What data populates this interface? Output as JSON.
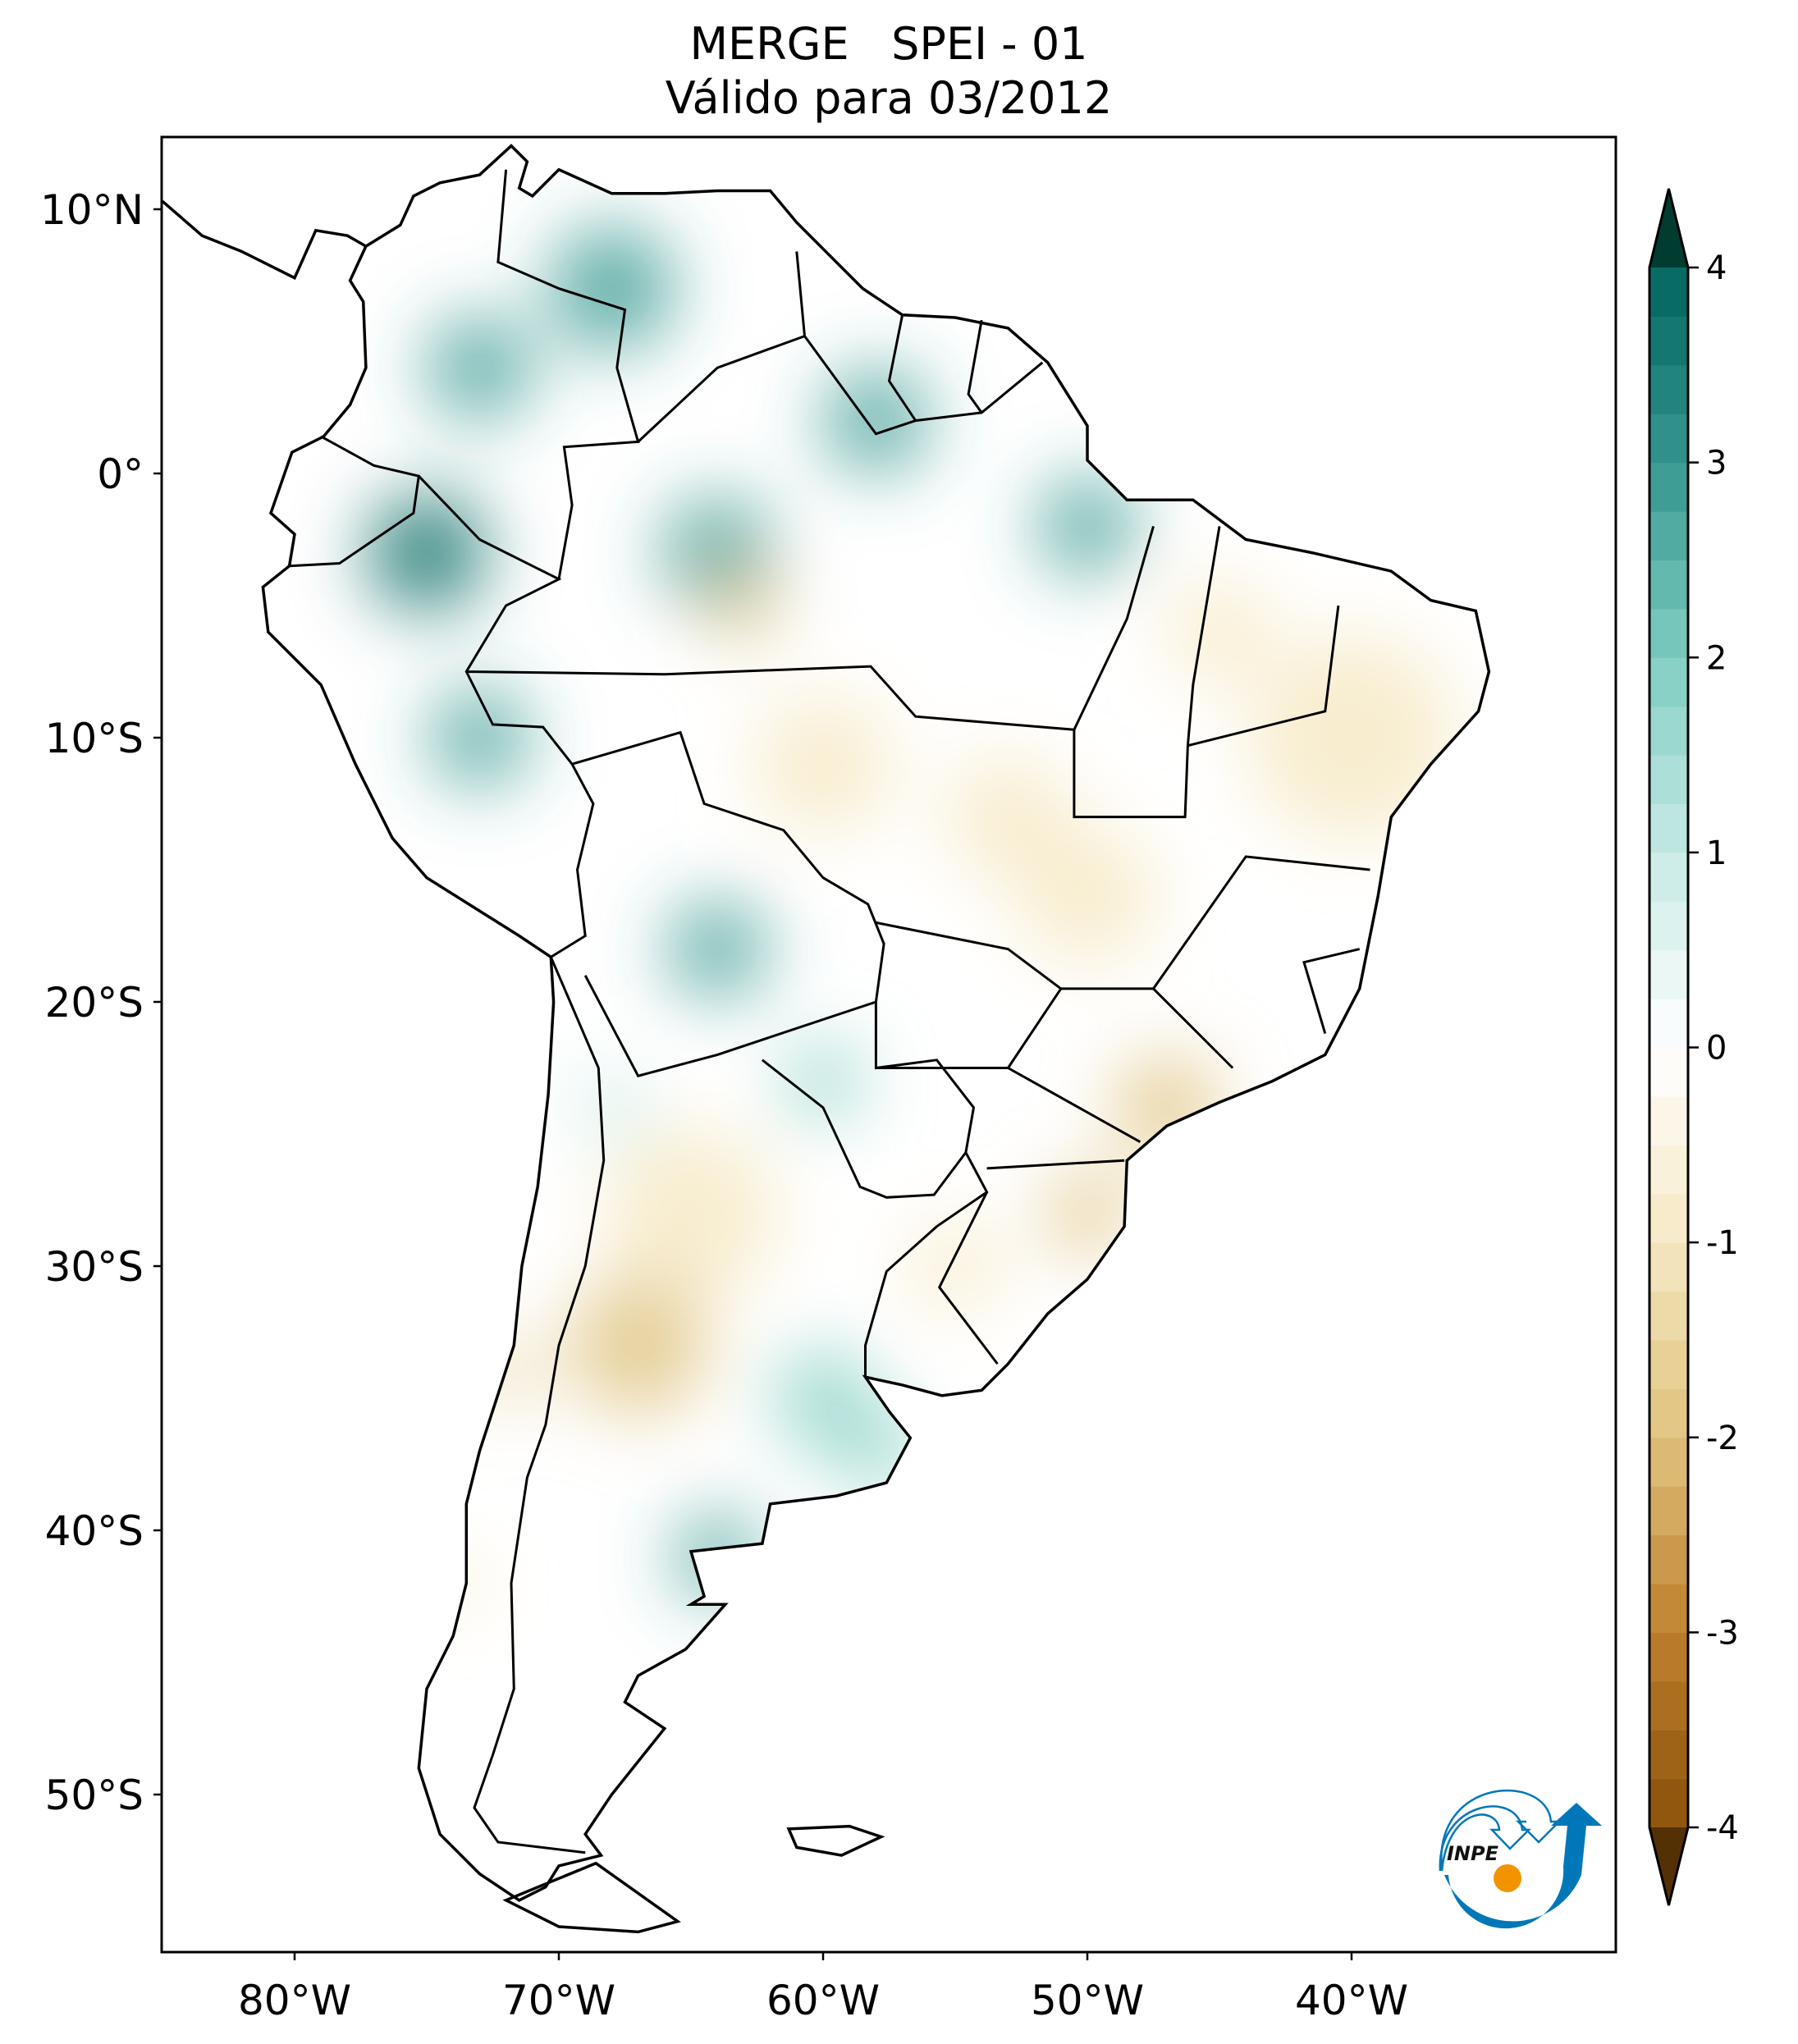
{
  "title": {
    "line1": "MERGE   SPEI - 01",
    "line2": "Válido para 03/2012"
  },
  "lat_ticks": [
    {
      "lat": 10,
      "label": "10°N"
    },
    {
      "lat": 0,
      "label": "0°"
    },
    {
      "lat": -10,
      "label": "10°S"
    },
    {
      "lat": -20,
      "label": "20°S"
    },
    {
      "lat": -30,
      "label": "30°S"
    },
    {
      "lat": -40,
      "label": "40°S"
    },
    {
      "lat": -50,
      "label": "50°S"
    }
  ],
  "lon_ticks": [
    {
      "lon": -80,
      "label": "80°W"
    },
    {
      "lon": -70,
      "label": "70°W"
    },
    {
      "lon": -60,
      "label": "60°W"
    },
    {
      "lon": -50,
      "label": "50°W"
    },
    {
      "lon": -40,
      "label": "40°W"
    }
  ],
  "colorbar": {
    "min": -4,
    "max": 4,
    "extend": "both",
    "ticks": [
      {
        "v": 4,
        "label": "4"
      },
      {
        "v": 3,
        "label": "3"
      },
      {
        "v": 2,
        "label": "2"
      },
      {
        "v": 1,
        "label": "1"
      },
      {
        "v": 0,
        "label": "0"
      },
      {
        "v": -1,
        "label": "-1"
      },
      {
        "v": -2,
        "label": "-2"
      },
      {
        "v": -3,
        "label": "-3"
      },
      {
        "v": -4,
        "label": "-4"
      }
    ],
    "colors": [
      "#543005",
      "#8c510a",
      "#bf812d",
      "#dfc27d",
      "#f6e8c3",
      "#ffffff",
      "#c7eae5",
      "#80cdc1",
      "#35978f",
      "#01665e",
      "#003c30"
    ]
  },
  "logo": {
    "text": "INPE",
    "blue": "#0077b8",
    "orange": "#f29400"
  }
}
